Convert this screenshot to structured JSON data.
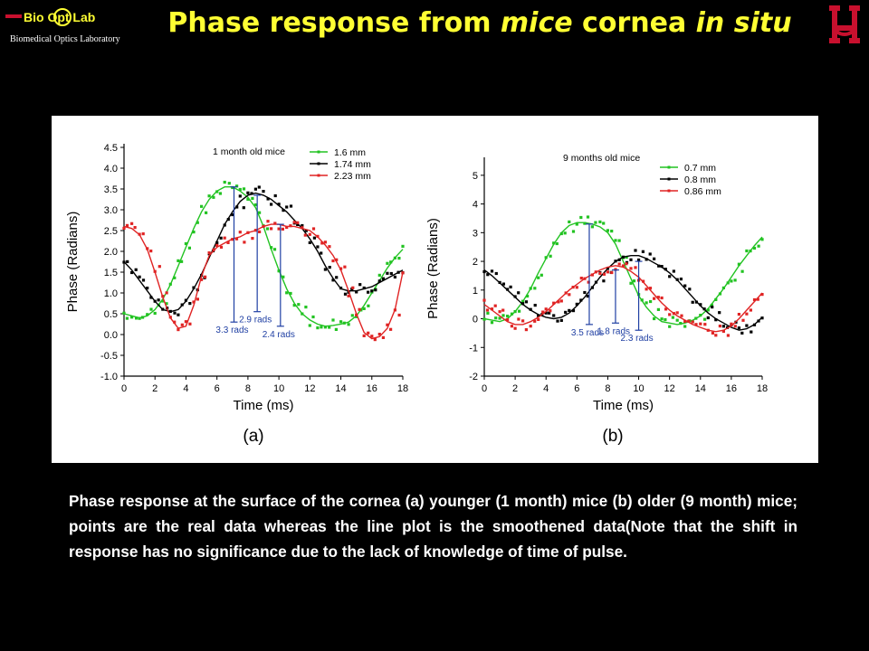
{
  "header": {
    "logo_text_main": "Bio Opt Lab",
    "logo_text_sub": "Biomedical Optics Laboratory",
    "title_part1": "Phase response from ",
    "title_part2": "mice",
    "title_part3": " cornea ",
    "title_part4": "in situ",
    "colors": {
      "title": "#ffff33",
      "background": "#000000",
      "uh_logo": "#c8102e"
    }
  },
  "caption": "Phase response at the surface of the cornea (a) younger (1 month) mice (b) older (9 month) mice; points are the real data whereas the line plot is the smoothened data(Note that the shift in response has no significance due to the lack of knowledge of time of pulse.",
  "chart_data": [
    {
      "type": "scatter",
      "panel_label": "(a)",
      "title": "1 month old mice",
      "xlabel": "Time (ms)",
      "ylabel": "Phase (Radians)",
      "xlim": [
        0,
        18
      ],
      "ylim": [
        -1.0,
        4.5
      ],
      "xticks": [
        "0",
        "2",
        "4",
        "6",
        "8",
        "10",
        "12",
        "14",
        "16",
        "18"
      ],
      "yticks": [
        "-1.0",
        "-0.5",
        "0.0",
        "0.5",
        "1.0",
        "1.5",
        "2.0",
        "2.5",
        "3.0",
        "3.5",
        "4.0",
        "4.5"
      ],
      "ytick_values": [
        -1.0,
        -0.5,
        0.0,
        0.5,
        1.0,
        1.5,
        2.0,
        2.5,
        3.0,
        3.5,
        4.0,
        4.5
      ],
      "legend_position": "top-right",
      "series": [
        {
          "name": "1.6 mm",
          "color": "#22c322",
          "x": [
            0,
            0.5,
            1,
            1.5,
            2,
            2.5,
            3,
            3.5,
            4,
            4.5,
            5,
            5.5,
            6,
            6.5,
            7,
            7.5,
            8,
            8.5,
            9,
            9.5,
            10,
            10.5,
            11,
            11.5,
            12,
            12.5,
            13,
            13.5,
            14,
            14.5,
            15,
            15.5,
            16,
            16.5,
            17,
            17.5,
            18
          ],
          "y": [
            0.5,
            0.45,
            0.4,
            0.45,
            0.6,
            0.85,
            1.2,
            1.65,
            2.1,
            2.55,
            2.95,
            3.25,
            3.45,
            3.55,
            3.55,
            3.45,
            3.3,
            3.05,
            2.6,
            2.05,
            1.55,
            1.1,
            0.75,
            0.5,
            0.35,
            0.25,
            0.2,
            0.22,
            0.25,
            0.3,
            0.45,
            0.7,
            1.0,
            1.3,
            1.6,
            1.85,
            2.05
          ]
        },
        {
          "name": "1.74 mm",
          "color": "#000000",
          "x": [
            0,
            0.5,
            1,
            1.5,
            2,
            2.5,
            3,
            3.5,
            4,
            4.5,
            5,
            5.5,
            6,
            6.5,
            7,
            7.5,
            8,
            8.5,
            9,
            9.5,
            10,
            10.5,
            11,
            11.5,
            12,
            12.5,
            13,
            13.5,
            14,
            14.5,
            15,
            15.5,
            16,
            16.5,
            17,
            17.5,
            18
          ],
          "y": [
            1.75,
            1.55,
            1.3,
            1.05,
            0.8,
            0.6,
            0.55,
            0.6,
            0.8,
            1.1,
            1.45,
            1.85,
            2.25,
            2.65,
            2.95,
            3.2,
            3.35,
            3.4,
            3.35,
            3.25,
            3.1,
            2.95,
            2.75,
            2.55,
            2.3,
            2.0,
            1.65,
            1.35,
            1.1,
            1.05,
            1.05,
            1.1,
            1.15,
            1.25,
            1.35,
            1.45,
            1.55
          ]
        },
        {
          "name": "2.23 mm",
          "color": "#e02424",
          "x": [
            0,
            0.5,
            1,
            1.5,
            2,
            2.5,
            3,
            3.5,
            4,
            4.5,
            5,
            5.5,
            6,
            6.5,
            7,
            7.5,
            8,
            8.5,
            9,
            9.5,
            10,
            10.5,
            11,
            11.5,
            12,
            12.5,
            13,
            13.5,
            14,
            14.5,
            15,
            15.5,
            16,
            16.5,
            17,
            17.5,
            18
          ],
          "y": [
            2.6,
            2.55,
            2.4,
            2.05,
            1.5,
            0.9,
            0.4,
            0.15,
            0.2,
            0.7,
            1.4,
            1.9,
            2.1,
            2.2,
            2.3,
            2.35,
            2.45,
            2.5,
            2.6,
            2.65,
            2.65,
            2.6,
            2.6,
            2.55,
            2.5,
            2.35,
            2.15,
            1.9,
            1.55,
            1.05,
            0.5,
            0.05,
            -0.1,
            -0.05,
            0.15,
            0.6,
            1.5
          ]
        }
      ],
      "annotations": [
        {
          "text": "3.3 rads",
          "x": 7.1,
          "y_low": 0.3,
          "y_high": 3.55
        },
        {
          "text": "2.9 rads",
          "x": 8.6,
          "y_low": 0.55,
          "y_high": 3.35
        },
        {
          "text": "2.4 rads",
          "x": 10.1,
          "y_low": 0.2,
          "y_high": 2.65
        }
      ]
    },
    {
      "type": "scatter",
      "panel_label": "(b)",
      "title": "9 months old mice",
      "xlabel": "Time (ms)",
      "ylabel": "Phase (Radians)",
      "xlim": [
        0,
        18
      ],
      "ylim": [
        -2,
        5.5
      ],
      "xticks": [
        "0",
        "2",
        "4",
        "6",
        "8",
        "10",
        "12",
        "14",
        "16",
        "18"
      ],
      "yticks": [
        "-2",
        "-1",
        "0",
        "1",
        "2",
        "3",
        "4",
        "5"
      ],
      "ytick_values": [
        -2,
        -1,
        0,
        1,
        2,
        3,
        4,
        5
      ],
      "legend_position": "top-right",
      "series": [
        {
          "name": "0.7 mm",
          "color": "#22c322",
          "x": [
            0,
            0.5,
            1,
            1.5,
            2,
            2.5,
            3,
            3.5,
            4,
            4.5,
            5,
            5.5,
            6,
            6.5,
            7,
            7.5,
            8,
            8.5,
            9,
            9.5,
            10,
            10.5,
            11,
            11.5,
            12,
            12.5,
            13,
            13.5,
            14,
            14.5,
            15,
            15.5,
            16,
            16.5,
            17,
            17.5,
            18
          ],
          "y": [
            0.0,
            -0.05,
            -0.1,
            0.0,
            0.25,
            0.6,
            1.05,
            1.6,
            2.1,
            2.6,
            3.0,
            3.25,
            3.35,
            3.35,
            3.3,
            3.2,
            3.0,
            2.6,
            2.0,
            1.4,
            0.8,
            0.4,
            0.1,
            -0.1,
            -0.15,
            -0.2,
            -0.15,
            -0.05,
            0.1,
            0.35,
            0.7,
            1.05,
            1.45,
            1.85,
            2.2,
            2.55,
            2.85
          ]
        },
        {
          "name": "0.8 mm",
          "color": "#000000",
          "x": [
            0,
            0.5,
            1,
            1.5,
            2,
            2.5,
            3,
            3.5,
            4,
            4.5,
            5,
            5.5,
            6,
            6.5,
            7,
            7.5,
            8,
            8.5,
            9,
            9.5,
            10,
            10.5,
            11,
            11.5,
            12,
            12.5,
            13,
            13.5,
            14,
            14.5,
            15,
            15.5,
            16,
            16.5,
            17,
            17.5,
            18
          ],
          "y": [
            1.7,
            1.5,
            1.25,
            1.0,
            0.75,
            0.5,
            0.3,
            0.15,
            0.05,
            0.0,
            0.05,
            0.2,
            0.45,
            0.75,
            1.1,
            1.45,
            1.75,
            2.0,
            2.15,
            2.2,
            2.2,
            2.1,
            1.95,
            1.8,
            1.6,
            1.35,
            1.05,
            0.75,
            0.45,
            0.2,
            0.0,
            -0.15,
            -0.3,
            -0.4,
            -0.35,
            -0.2,
            0.05
          ]
        },
        {
          "name": "0.86 mm",
          "color": "#e02424",
          "x": [
            0,
            0.5,
            1,
            1.5,
            2,
            2.5,
            3,
            3.5,
            4,
            4.5,
            5,
            5.5,
            6,
            6.5,
            7,
            7.5,
            8,
            8.5,
            9,
            9.5,
            10,
            10.5,
            11,
            11.5,
            12,
            12.5,
            13,
            13.5,
            14,
            14.5,
            15,
            15.5,
            16,
            16.5,
            17,
            17.5,
            18
          ],
          "y": [
            0.5,
            0.3,
            0.1,
            -0.1,
            -0.2,
            -0.2,
            -0.1,
            0.05,
            0.25,
            0.5,
            0.75,
            1.0,
            1.2,
            1.4,
            1.55,
            1.7,
            1.8,
            1.85,
            1.8,
            1.65,
            1.45,
            1.15,
            0.85,
            0.55,
            0.3,
            0.1,
            -0.05,
            -0.2,
            -0.3,
            -0.4,
            -0.45,
            -0.4,
            -0.25,
            0.0,
            0.3,
            0.6,
            0.9
          ]
        }
      ],
      "annotations": [
        {
          "text": "3.5 rads",
          "x": 6.8,
          "y_low": -0.2,
          "y_high": 3.3
        },
        {
          "text": "1.8 rads",
          "x": 8.5,
          "y_low": -0.15,
          "y_high": 1.7
        },
        {
          "text": "2.3 rads",
          "x": 10.0,
          "y_low": -0.4,
          "y_high": 2.0
        }
      ]
    }
  ]
}
